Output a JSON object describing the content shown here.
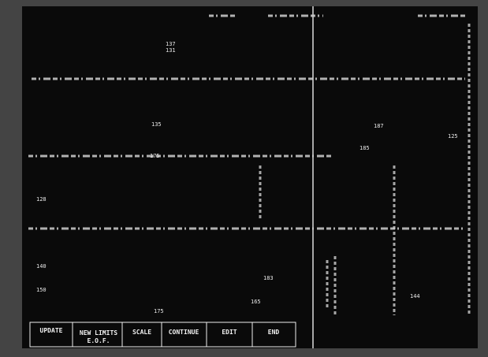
{
  "menu": {
    "buttons": [
      "UPDATE",
      "NEW LIMITS",
      "SCALE",
      "CONTINUE",
      "EDIT",
      "END"
    ],
    "sub_label": "E.O.F."
  },
  "readings": [
    "137",
    "131",
    "135",
    "187",
    "185",
    "175",
    "125",
    "128",
    "183",
    "140",
    "150",
    "165",
    "175",
    "144"
  ]
}
